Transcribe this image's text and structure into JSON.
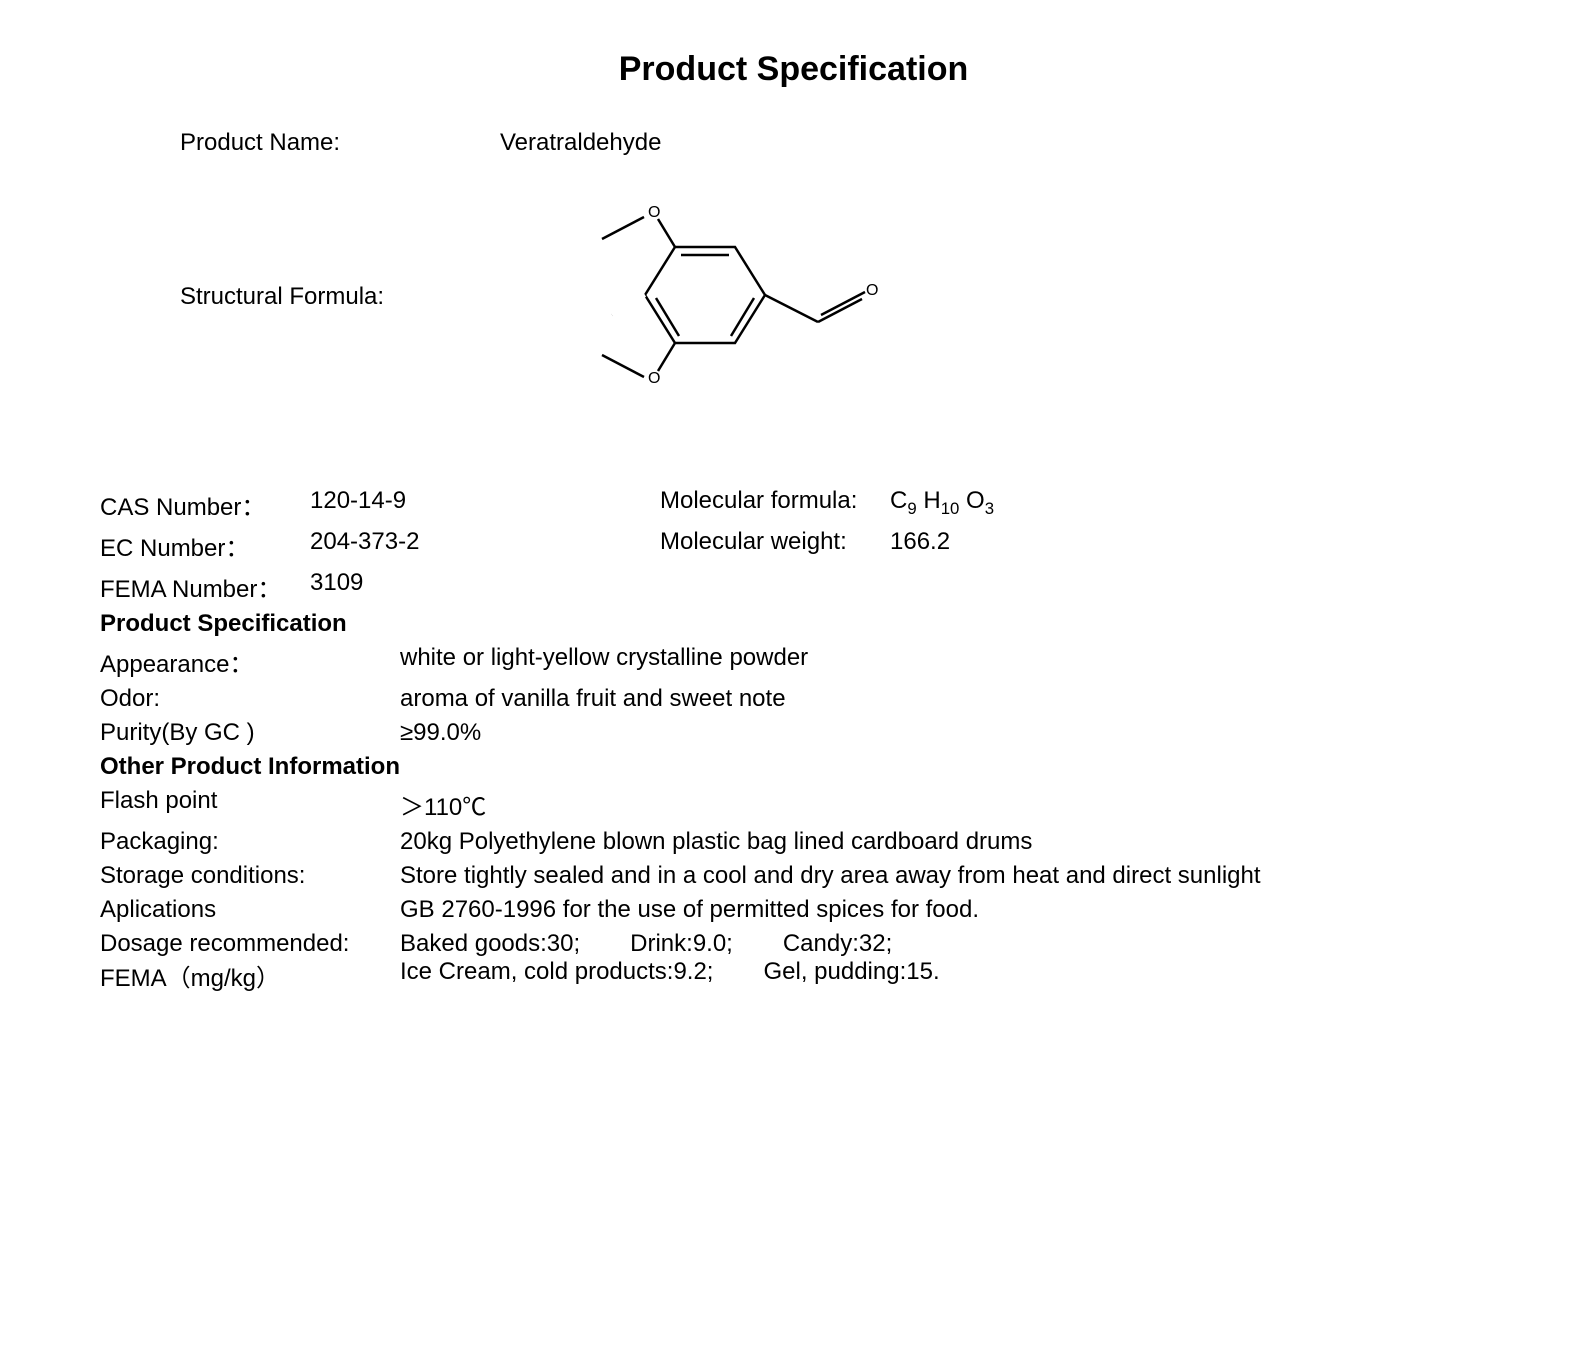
{
  "title": "Product Specification",
  "productName": {
    "label": "Product Name:",
    "value": "Veratraldehyde"
  },
  "structural": {
    "label": "Structural Formula:"
  },
  "identifiers": {
    "cas": {
      "label": "CAS Number：",
      "value": "120-14-9"
    },
    "ec": {
      "label": "EC Number：",
      "value": "204-373-2"
    },
    "fema": {
      "label": "FEMA Number：",
      "value": "3109"
    },
    "mf": {
      "label": "Molecular formula:",
      "formula_html": "C<sub>9</sub> H<sub>10</sub> O<sub>3</sub>"
    },
    "mw": {
      "label": "Molecular weight:",
      "value": "166.2"
    }
  },
  "specHeader": "Product Specification",
  "spec": {
    "appearance": {
      "label": "Appearance：",
      "value": "white or light-yellow crystalline powder"
    },
    "odor": {
      "label": "Odor:",
      "value": "aroma of vanilla fruit and sweet note"
    },
    "purity": {
      "label": "Purity(By GC )",
      "value": "≥99.0%"
    }
  },
  "otherHeader": "Other Product Information",
  "other": {
    "flash": {
      "label": "Flash point",
      "value": "＞110℃"
    },
    "pack": {
      "label": "Packaging:",
      "value": "20kg Polyethylene blown plastic bag lined cardboard drums"
    },
    "storage": {
      "label": "Storage conditions:",
      "value": "Store tightly sealed and in a cool and dry area away from heat and direct sunlight"
    },
    "app": {
      "label": "Aplications",
      "value": "GB 2760-1996 for the use of permitted spices for food."
    },
    "dosage": {
      "label": "Dosage recommended:",
      "sublabel": "FEMA（mg/kg）",
      "items": [
        "Baked goods:30;",
        "Drink:9.0;",
        "Candy:32;",
        "Ice Cream, cold products:9.2;",
        "Gel, pudding:15."
      ]
    }
  },
  "structure_svg": {
    "stroke": "#000000",
    "stroke_width": 2
  }
}
